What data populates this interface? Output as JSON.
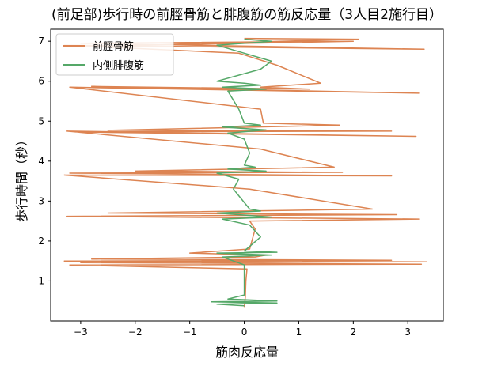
{
  "chart_data": {
    "type": "line",
    "title": "(前足部)歩行時の前脛骨筋と腓腹筋の筋反応量（3人目2施行目）",
    "xlabel": "筋肉反応量",
    "ylabel": "歩行時間（秒）",
    "xlim": [
      -3.55,
      3.65
    ],
    "ylim": [
      0.0,
      7.3
    ],
    "xticks": [
      -3,
      -2,
      -1,
      0,
      1,
      2,
      3
    ],
    "yticks": [
      1,
      2,
      3,
      4,
      5,
      6,
      7
    ],
    "grid": false,
    "legend_position": "top-left",
    "series": [
      {
        "name": "前脛骨筋",
        "color": "#dd8452",
        "points": [
          [
            0.0,
            0.35
          ],
          [
            0.02,
            0.6
          ],
          [
            0.03,
            1.0
          ],
          [
            0.05,
            1.3
          ],
          [
            -3.2,
            1.4
          ],
          [
            3.25,
            1.42
          ],
          [
            -3.0,
            1.46
          ],
          [
            3.35,
            1.48
          ],
          [
            -3.3,
            1.5
          ],
          [
            2.7,
            1.52
          ],
          [
            -2.8,
            1.55
          ],
          [
            0.2,
            1.6
          ],
          [
            0.4,
            1.65
          ],
          [
            -1.0,
            1.7
          ],
          [
            0.1,
            1.8
          ],
          [
            0.2,
            2.3
          ],
          [
            0.1,
            2.5
          ],
          [
            3.2,
            2.55
          ],
          [
            -3.25,
            2.62
          ],
          [
            2.8,
            2.66
          ],
          [
            -2.5,
            2.7
          ],
          [
            2.35,
            2.8
          ],
          [
            0.1,
            3.3
          ],
          [
            -3.3,
            3.65
          ],
          [
            2.7,
            3.63
          ],
          [
            -3.2,
            3.7
          ],
          [
            1.8,
            3.72
          ],
          [
            -2.0,
            3.75
          ],
          [
            1.65,
            3.85
          ],
          [
            0.3,
            4.3
          ],
          [
            -3.25,
            4.75
          ],
          [
            3.15,
            4.62
          ],
          [
            -3.1,
            4.73
          ],
          [
            2.7,
            4.75
          ],
          [
            -2.5,
            4.77
          ],
          [
            1.75,
            4.9
          ],
          [
            0.35,
            4.95
          ],
          [
            0.3,
            5.3
          ],
          [
            -3.2,
            5.85
          ],
          [
            3.2,
            5.7
          ],
          [
            -2.8,
            5.87
          ],
          [
            1.2,
            5.8
          ],
          [
            0.3,
            5.85
          ],
          [
            1.4,
            5.95
          ],
          [
            0.6,
            6.4
          ],
          [
            -0.1,
            6.7
          ],
          [
            -3.3,
            6.9
          ],
          [
            3.3,
            6.8
          ],
          [
            -3.0,
            6.95
          ],
          [
            2.0,
            7.0
          ],
          [
            -2.5,
            6.88
          ],
          [
            2.1,
            7.05
          ],
          [
            0.0,
            7.07
          ]
        ]
      },
      {
        "name": "内側腓腹筋",
        "color": "#55a868",
        "points": [
          [
            0.0,
            0.38
          ],
          [
            -0.5,
            0.42
          ],
          [
            0.6,
            0.45
          ],
          [
            -0.6,
            0.48
          ],
          [
            0.6,
            0.5
          ],
          [
            -0.3,
            0.55
          ],
          [
            0.0,
            0.65
          ],
          [
            0.0,
            1.0
          ],
          [
            0.0,
            1.4
          ],
          [
            -0.4,
            1.6
          ],
          [
            0.5,
            1.65
          ],
          [
            -0.5,
            1.7
          ],
          [
            0.6,
            1.72
          ],
          [
            0.0,
            1.75
          ],
          [
            0.3,
            2.1
          ],
          [
            0.1,
            2.4
          ],
          [
            -0.4,
            2.55
          ],
          [
            0.5,
            2.6
          ],
          [
            -0.5,
            2.7
          ],
          [
            0.3,
            2.75
          ],
          [
            0.1,
            2.8
          ],
          [
            -0.2,
            3.3
          ],
          [
            -0.1,
            3.55
          ],
          [
            -0.5,
            3.7
          ],
          [
            0.4,
            3.75
          ],
          [
            -0.3,
            3.8
          ],
          [
            0.2,
            3.85
          ],
          [
            0.0,
            3.9
          ],
          [
            0.1,
            4.2
          ],
          [
            0.0,
            4.55
          ],
          [
            -0.3,
            4.7
          ],
          [
            0.4,
            4.78
          ],
          [
            -0.4,
            4.85
          ],
          [
            0.3,
            4.9
          ],
          [
            0.0,
            4.95
          ],
          [
            -0.1,
            5.3
          ],
          [
            -0.3,
            5.75
          ],
          [
            0.4,
            5.8
          ],
          [
            -0.4,
            5.85
          ],
          [
            0.3,
            5.9
          ],
          [
            0.0,
            5.95
          ],
          [
            -0.5,
            6.0
          ],
          [
            0.3,
            6.3
          ],
          [
            0.5,
            6.5
          ],
          [
            0.0,
            6.7
          ],
          [
            -0.5,
            6.9
          ],
          [
            0.5,
            7.0
          ],
          [
            0.0,
            7.05
          ]
        ]
      }
    ]
  }
}
